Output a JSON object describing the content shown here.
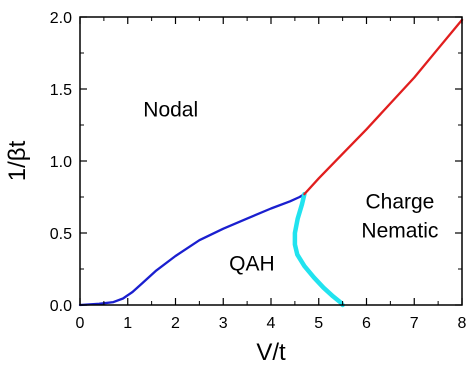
{
  "chart_data": {
    "type": "line",
    "title": "",
    "xlabel": "V/t",
    "ylabel": "1/βt",
    "xlim": [
      0,
      8
    ],
    "ylim": [
      0,
      2.0
    ],
    "x_ticks": [
      "0",
      "1",
      "2",
      "3",
      "4",
      "5",
      "6",
      "7",
      "8"
    ],
    "y_ticks": [
      "0.0",
      "0.5",
      "1.0",
      "1.5",
      "2.0"
    ],
    "grid": false,
    "regions": [
      {
        "label": "Nodal",
        "x": 1.9,
        "y": 1.31
      },
      {
        "label": "QAH",
        "x": 3.6,
        "y": 0.24
      },
      {
        "label": "Charge",
        "x": 6.7,
        "y": 0.67
      },
      {
        "label": "Nematic",
        "x": 6.7,
        "y": 0.47
      }
    ],
    "series": [
      {
        "color": "#1a1fcf",
        "x": [
          0,
          0.4,
          0.7,
          0.9,
          1.1,
          1.3,
          1.6,
          2.0,
          2.5,
          3.0,
          3.5,
          4.0,
          4.4,
          4.6,
          4.7
        ],
        "y": [
          0.0,
          0.008,
          0.02,
          0.045,
          0.09,
          0.15,
          0.24,
          0.34,
          0.45,
          0.53,
          0.6,
          0.67,
          0.72,
          0.75,
          0.77
        ]
      },
      {
        "color": "#21e3ef",
        "x": [
          4.7,
          4.65,
          4.56,
          4.5,
          4.5,
          4.55,
          4.7,
          4.9,
          5.1,
          5.3,
          5.45,
          5.5
        ],
        "y": [
          0.77,
          0.7,
          0.6,
          0.5,
          0.42,
          0.35,
          0.27,
          0.19,
          0.12,
          0.06,
          0.02,
          0.0
        ]
      },
      {
        "color": "#e11e1e",
        "x": [
          4.7,
          5.0,
          5.5,
          6.0,
          6.5,
          7.0,
          7.5,
          8.0
        ],
        "y": [
          0.77,
          0.88,
          1.05,
          1.22,
          1.4,
          1.58,
          1.78,
          1.98
        ]
      }
    ]
  }
}
